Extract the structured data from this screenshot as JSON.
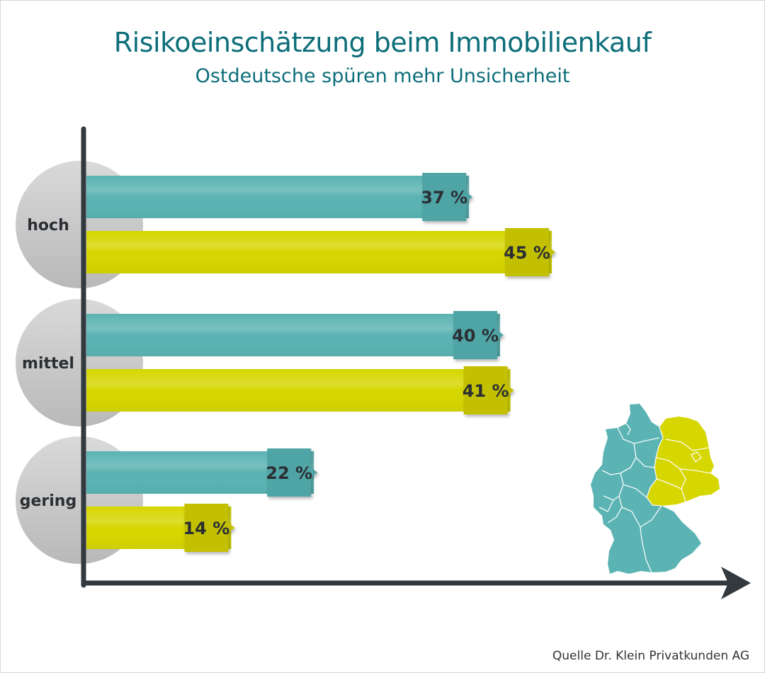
{
  "header": {
    "title": "Risikoeinschätzung beim Immobilienkauf",
    "subtitle": "Ostdeutsche spüren mehr Unsicherheit"
  },
  "source": "Quelle Dr. Klein Privatkunden AG",
  "colors": {
    "west": "#5bb3b3",
    "west_tag": "#4fa4a6",
    "east": "#d6d600",
    "east_tag": "#c2c000",
    "axis": "#333a3f",
    "category_circle": "#c4c4c4",
    "text_dark": "#2b2f33"
  },
  "chart_data": {
    "type": "bar",
    "orientation": "horizontal",
    "categories": [
      "hoch",
      "mittel",
      "gering"
    ],
    "series": [
      {
        "values": [
          37,
          40,
          22
        ],
        "color": "#5bb3b3"
      },
      {
        "values": [
          45,
          41,
          14
        ],
        "color": "#d6d600"
      }
    ],
    "value_suffix": " %",
    "xlim": [
      0,
      56
    ]
  },
  "map": {
    "region_colors": {
      "west": "#5bb3b3",
      "east": "#d6d600"
    }
  }
}
